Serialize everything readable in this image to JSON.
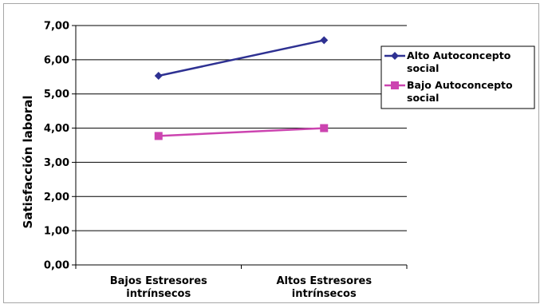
{
  "chart_data": {
    "type": "line",
    "categories": [
      [
        "Bajos Estresores",
        "intrínsecos"
      ],
      [
        "Altos Estresores",
        "intrínsecos"
      ]
    ],
    "ylabel": "Satisfacción laboral",
    "ylim": [
      0,
      7
    ],
    "yticks": [
      "0,00",
      "1,00",
      "2,00",
      "3,00",
      "4,00",
      "5,00",
      "6,00",
      "7,00"
    ],
    "grid": "horizontal",
    "legend_position": "right",
    "series": [
      {
        "name_lines": [
          "Alto Autoconcepto",
          "social"
        ],
        "values": [
          5.53,
          6.57
        ],
        "color": "#2e3192",
        "marker": "diamond"
      },
      {
        "name_lines": [
          "Bajo Autoconcepto",
          "social"
        ],
        "values": [
          3.77,
          4.0
        ],
        "color": "#cc44b0",
        "marker": "square"
      }
    ]
  }
}
